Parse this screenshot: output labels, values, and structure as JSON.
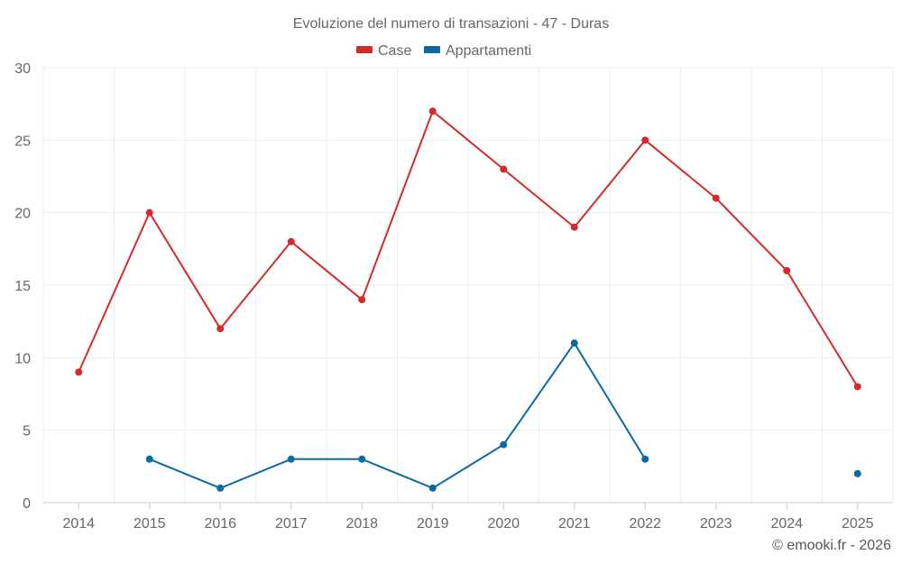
{
  "chart_data": {
    "type": "line",
    "title": "Evoluzione del numero di transazioni - 47 - Duras",
    "categories": [
      "2014",
      "2015",
      "2016",
      "2017",
      "2018",
      "2019",
      "2020",
      "2021",
      "2022",
      "2023",
      "2024",
      "2025"
    ],
    "series": [
      {
        "name": "Case",
        "color": "#d42a2a",
        "values": [
          9,
          20,
          12,
          18,
          14,
          27,
          23,
          19,
          25,
          21,
          16,
          8
        ]
      },
      {
        "name": "Appartamenti",
        "color": "#0b6aa2",
        "values": [
          null,
          3,
          1,
          3,
          3,
          1,
          4,
          11,
          3,
          null,
          null,
          2
        ]
      }
    ],
    "y_ticks": [
      0,
      5,
      10,
      15,
      20,
      25,
      30
    ],
    "ylim": [
      0,
      30
    ],
    "xlabel": "",
    "ylabel": "",
    "legend_position": "top-center",
    "grid": true
  },
  "credit": "© emooki.fr - 2026"
}
